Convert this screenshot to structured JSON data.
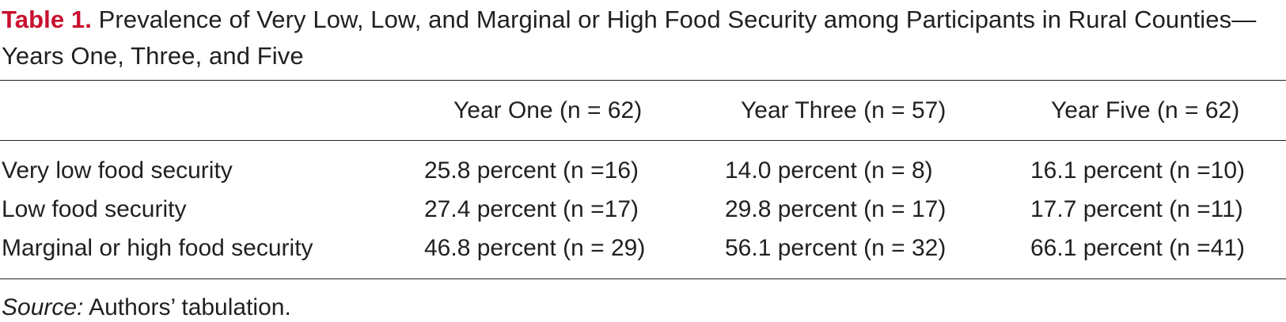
{
  "caption": {
    "label": "Table 1.",
    "text": "Prevalence of Very Low, Low, and Marginal or High Food Security among Participants in Rural Counties—Years One, Three, and Five"
  },
  "table": {
    "columns": [
      "",
      "Year One (n = 62)",
      "Year Three (n = 57)",
      "Year Five (n = 62)"
    ],
    "rows": [
      {
        "label": "Very low food security",
        "values": [
          "25.8 percent (n =16)",
          "14.0 percent (n = 8)",
          "16.1 percent (n =10)"
        ]
      },
      {
        "label": "Low food security",
        "values": [
          "27.4 percent (n =17)",
          "29.8 percent (n = 17)",
          "17.7 percent (n =11)"
        ]
      },
      {
        "label": "Marginal or high food security",
        "values": [
          "46.8 percent (n = 29)",
          "56.1 percent (n = 32)",
          "66.1 percent (n =41)"
        ]
      }
    ]
  },
  "source": {
    "label": "Source:",
    "text": "Authors’ tabulation."
  },
  "colors": {
    "accent": "#c8102e",
    "text": "#231f20"
  }
}
